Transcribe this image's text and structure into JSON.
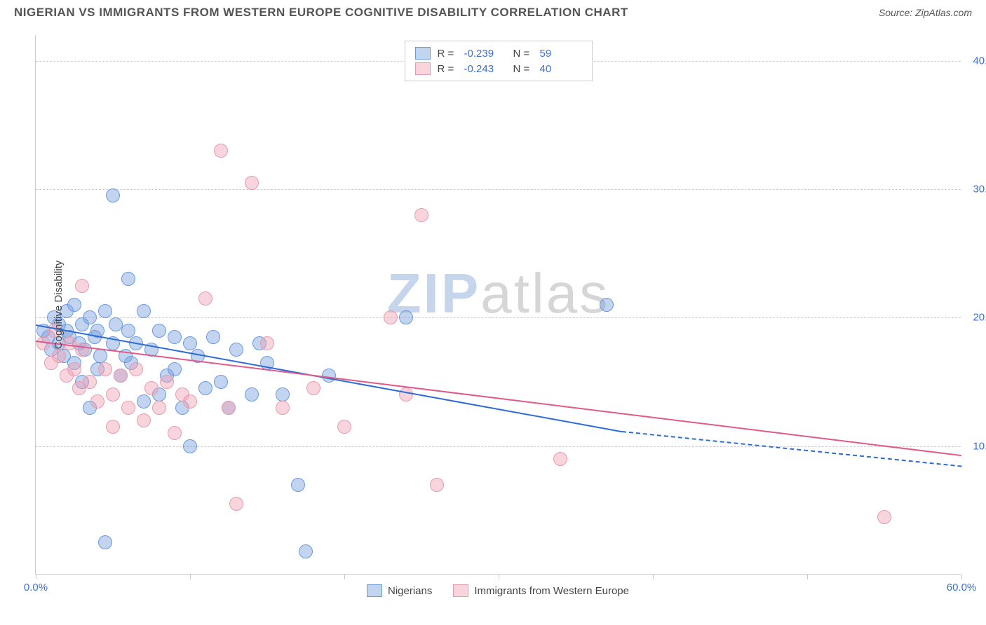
{
  "header": {
    "title": "NIGERIAN VS IMMIGRANTS FROM WESTERN EUROPE COGNITIVE DISABILITY CORRELATION CHART",
    "source_prefix": "Source: ",
    "source_name": "ZipAtlas.com"
  },
  "watermark": {
    "part1": "ZIP",
    "part2": "atlas"
  },
  "chart": {
    "type": "scatter",
    "ylabel": "Cognitive Disability",
    "xlim": [
      0,
      60
    ],
    "ylim": [
      0,
      42
    ],
    "y_ticks": [
      10,
      20,
      30,
      40
    ],
    "y_tick_labels": [
      "10.0%",
      "20.0%",
      "30.0%",
      "40.0%"
    ],
    "x_ticks": [
      0,
      10,
      20,
      30,
      40,
      50,
      60
    ],
    "x_tick_labels_shown": {
      "0": "0.0%",
      "60": "60.0%"
    },
    "background_color": "#ffffff",
    "grid_color": "#cccccc",
    "axis_label_color": "#3b6fd6",
    "marker_radius": 10,
    "series": [
      {
        "name": "Nigerians",
        "fill": "rgba(120,160,220,0.45)",
        "stroke": "#6a9ae0",
        "trend_color": "#2d6cd6",
        "R": "-0.239",
        "N": "59",
        "trend": {
          "x1": 0,
          "y1": 19.5,
          "x2": 38,
          "y2": 11.2,
          "dash_x2": 60,
          "dash_y2": 8.5
        },
        "points": [
          [
            0.5,
            19.0
          ],
          [
            0.8,
            18.5
          ],
          [
            1.0,
            17.5
          ],
          [
            1.2,
            20.0
          ],
          [
            1.5,
            19.5
          ],
          [
            1.5,
            18.0
          ],
          [
            1.8,
            17.0
          ],
          [
            2.0,
            20.5
          ],
          [
            2.0,
            19.0
          ],
          [
            2.2,
            18.5
          ],
          [
            2.5,
            16.5
          ],
          [
            2.5,
            21.0
          ],
          [
            2.8,
            18.0
          ],
          [
            3.0,
            19.5
          ],
          [
            3.0,
            15.0
          ],
          [
            3.2,
            17.5
          ],
          [
            3.5,
            20.0
          ],
          [
            3.5,
            13.0
          ],
          [
            3.8,
            18.5
          ],
          [
            4.0,
            19.0
          ],
          [
            4.0,
            16.0
          ],
          [
            4.2,
            17.0
          ],
          [
            4.5,
            20.5
          ],
          [
            4.5,
            2.5
          ],
          [
            5.0,
            18.0
          ],
          [
            5.0,
            29.5
          ],
          [
            5.2,
            19.5
          ],
          [
            5.5,
            15.5
          ],
          [
            5.8,
            17.0
          ],
          [
            6.0,
            23.0
          ],
          [
            6.0,
            19.0
          ],
          [
            6.2,
            16.5
          ],
          [
            6.5,
            18.0
          ],
          [
            7.0,
            13.5
          ],
          [
            7.0,
            20.5
          ],
          [
            7.5,
            17.5
          ],
          [
            8.0,
            19.0
          ],
          [
            8.0,
            14.0
          ],
          [
            8.5,
            15.5
          ],
          [
            9.0,
            18.5
          ],
          [
            9.0,
            16.0
          ],
          [
            9.5,
            13.0
          ],
          [
            10.0,
            18.0
          ],
          [
            10.0,
            10.0
          ],
          [
            10.5,
            17.0
          ],
          [
            11.0,
            14.5
          ],
          [
            11.5,
            18.5
          ],
          [
            12.0,
            15.0
          ],
          [
            12.5,
            13.0
          ],
          [
            13.0,
            17.5
          ],
          [
            14.0,
            14.0
          ],
          [
            14.5,
            18.0
          ],
          [
            15.0,
            16.5
          ],
          [
            16.0,
            14.0
          ],
          [
            17.0,
            7.0
          ],
          [
            17.5,
            1.8
          ],
          [
            19.0,
            15.5
          ],
          [
            24.0,
            20.0
          ],
          [
            37.0,
            21.0
          ]
        ]
      },
      {
        "name": "Immigrants from Western Europe",
        "fill": "rgba(240,160,180,0.45)",
        "stroke": "#e89ab0",
        "trend_color": "#e05a8a",
        "R": "-0.243",
        "N": "40",
        "trend": {
          "x1": 0,
          "y1": 18.2,
          "x2": 60,
          "y2": 9.3
        },
        "points": [
          [
            0.5,
            18.0
          ],
          [
            1.0,
            16.5
          ],
          [
            1.2,
            19.0
          ],
          [
            1.5,
            17.0
          ],
          [
            2.0,
            15.5
          ],
          [
            2.2,
            18.0
          ],
          [
            2.5,
            16.0
          ],
          [
            2.8,
            14.5
          ],
          [
            3.0,
            17.5
          ],
          [
            3.0,
            22.5
          ],
          [
            3.5,
            15.0
          ],
          [
            4.0,
            13.5
          ],
          [
            4.5,
            16.0
          ],
          [
            5.0,
            14.0
          ],
          [
            5.0,
            11.5
          ],
          [
            5.5,
            15.5
          ],
          [
            6.0,
            13.0
          ],
          [
            6.5,
            16.0
          ],
          [
            7.0,
            12.0
          ],
          [
            7.5,
            14.5
          ],
          [
            8.0,
            13.0
          ],
          [
            8.5,
            15.0
          ],
          [
            9.0,
            11.0
          ],
          [
            9.5,
            14.0
          ],
          [
            10.0,
            13.5
          ],
          [
            11.0,
            21.5
          ],
          [
            12.0,
            33.0
          ],
          [
            12.5,
            13.0
          ],
          [
            13.0,
            5.5
          ],
          [
            14.0,
            30.5
          ],
          [
            15.0,
            18.0
          ],
          [
            16.0,
            13.0
          ],
          [
            18.0,
            14.5
          ],
          [
            20.0,
            11.5
          ],
          [
            23.0,
            20.0
          ],
          [
            24.0,
            14.0
          ],
          [
            25.0,
            28.0
          ],
          [
            26.0,
            7.0
          ],
          [
            34.0,
            9.0
          ],
          [
            55.0,
            4.5
          ]
        ]
      }
    ],
    "legend_bottom": [
      {
        "label": "Nigerians",
        "fill": "rgba(120,160,220,0.45)",
        "stroke": "#6a9ae0"
      },
      {
        "label": "Immigrants from Western Europe",
        "fill": "rgba(240,160,180,0.45)",
        "stroke": "#e89ab0"
      }
    ]
  }
}
